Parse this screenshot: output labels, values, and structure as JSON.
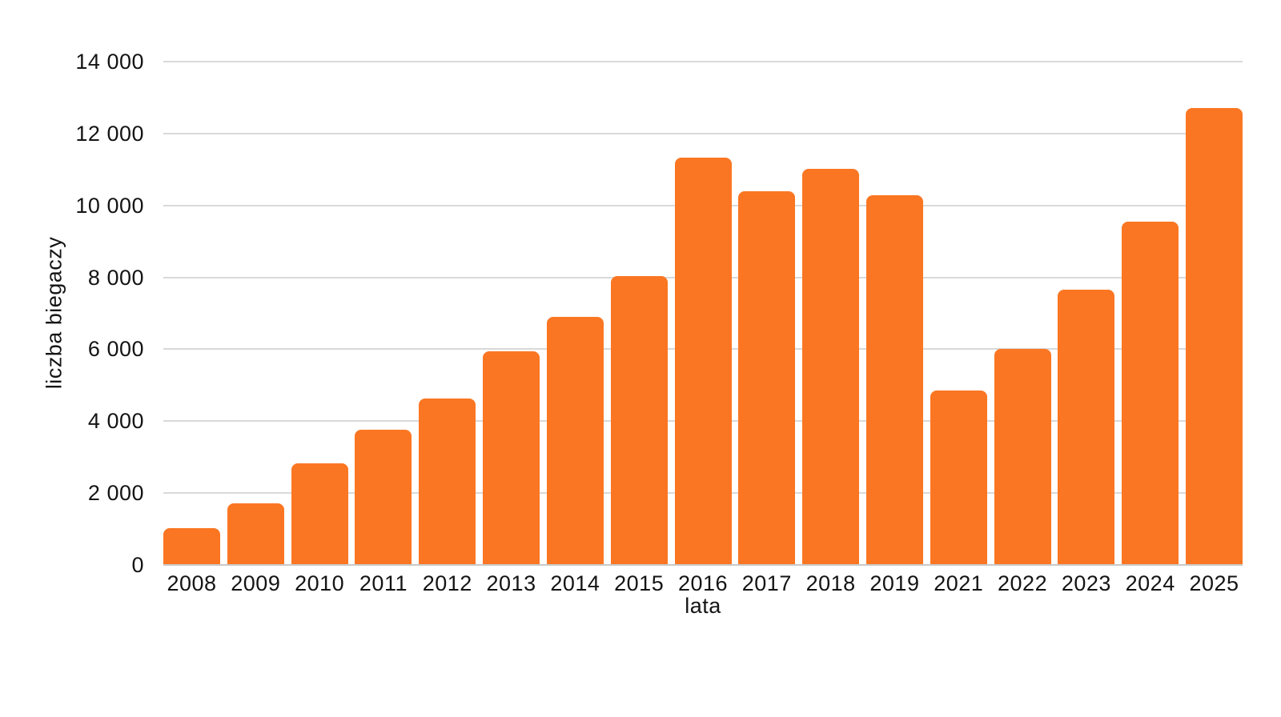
{
  "chart_data": {
    "type": "bar",
    "title": "",
    "xlabel": "lata",
    "ylabel": "liczba biegaczy",
    "categories": [
      "2008",
      "2009",
      "2010",
      "2011",
      "2012",
      "2013",
      "2014",
      "2015",
      "2016",
      "2017",
      "2018",
      "2019",
      "2021",
      "2022",
      "2023",
      "2024",
      "2025"
    ],
    "values": [
      1020,
      1720,
      2820,
      3760,
      4620,
      5950,
      6900,
      8030,
      11320,
      10390,
      11010,
      10290,
      4860,
      6010,
      7660,
      9540,
      12710
    ],
    "ylim": [
      0,
      14000
    ],
    "ytick_values": [
      0,
      2000,
      4000,
      6000,
      8000,
      10000,
      12000,
      14000
    ],
    "ytick_labels": [
      "0",
      "2 000",
      "4 000",
      "6 000",
      "8 000",
      "10 000",
      "12 000",
      "14 000"
    ],
    "grid": "horizontal",
    "legend": "none",
    "colors": {
      "bar": "#fb7622",
      "grid": "#d9d9d9",
      "axis": "#c9c9c9",
      "text": "#141414"
    }
  }
}
